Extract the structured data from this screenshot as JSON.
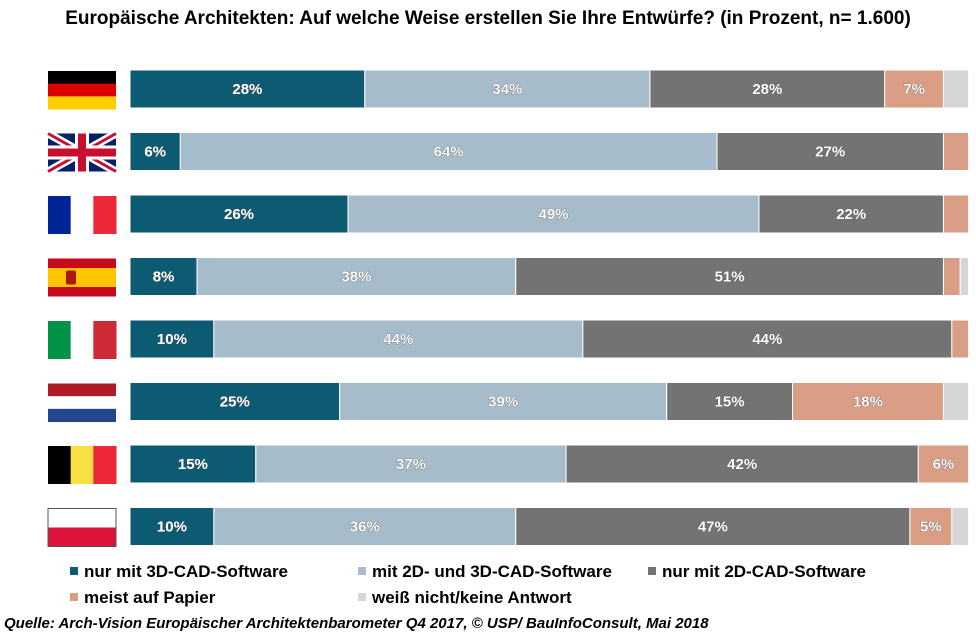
{
  "title": "Europäische Architekten: Auf welche Weise erstellen Sie Ihre Entwürfe? (in Prozent, n= 1.600)",
  "source": "Quelle: Arch-Vision Europäischer Architektenbarometer Q4 2017, © USP/ BauInfoConsult, Mai 2018",
  "colors": {
    "3d": "#0d5a73",
    "2d3d": "#a7bccb",
    "2d": "#737373",
    "paper": "#da9d86",
    "unknown": "#d6d6d6"
  },
  "chart_data": {
    "type": "bar",
    "orientation": "horizontal",
    "stacked": true,
    "categories": [
      "germany-flag",
      "uk-flag",
      "france-flag",
      "spain-flag",
      "italy-flag",
      "netherlands-flag",
      "belgium-flag",
      "poland-flag"
    ],
    "series": [
      {
        "name": "nur mit 3D-CAD-Software",
        "color": "#0d5a73",
        "values": [
          28,
          6,
          26,
          8,
          10,
          25,
          15,
          10
        ],
        "labels": [
          "28%",
          "6%",
          "26%",
          "8%",
          "10%",
          "25%",
          "15%",
          "10%"
        ]
      },
      {
        "name": "mit 2D- und 3D-CAD-Software",
        "color": "#a7bccb",
        "values": [
          34,
          64,
          49,
          38,
          44,
          39,
          37,
          36
        ],
        "labels": [
          "34%",
          "64%",
          "49%",
          "38%",
          "44%",
          "39%",
          "37%",
          "36%"
        ]
      },
      {
        "name": "nur mit 2D-CAD-Software",
        "color": "#737373",
        "values": [
          28,
          27,
          22,
          51,
          44,
          15,
          42,
          47
        ],
        "labels": [
          "28%",
          "27%",
          "22%",
          "51%",
          "44%",
          "15%",
          "42%",
          "47%"
        ]
      },
      {
        "name": "meist auf Papier",
        "color": "#da9d86",
        "values": [
          7,
          3,
          3,
          2,
          2,
          18,
          6,
          5
        ],
        "labels": [
          "7%",
          "",
          "",
          "",
          "",
          "18%",
          "6%",
          "5%"
        ]
      },
      {
        "name": "weiß nicht/keine Antwort",
        "color": "#d6d6d6",
        "values": [
          3,
          0,
          0,
          1,
          0,
          3,
          0,
          2
        ],
        "labels": [
          "",
          "",
          "",
          "",
          "",
          "",
          "",
          ""
        ]
      }
    ],
    "xlim": [
      0,
      100
    ],
    "legend": "bottom",
    "grid": false
  }
}
